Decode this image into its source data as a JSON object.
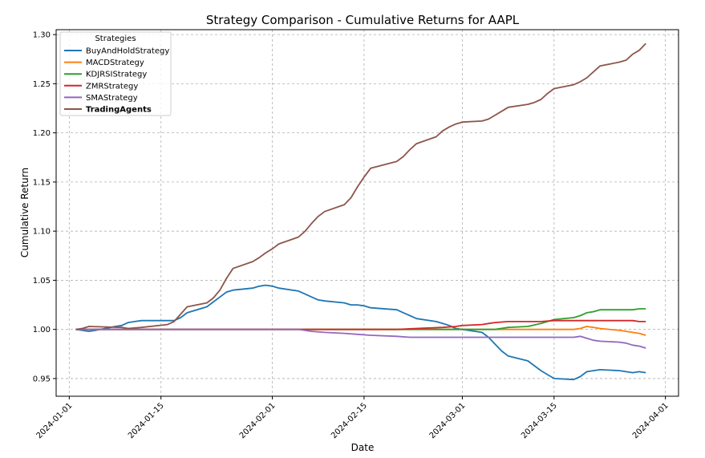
{
  "chart_data": {
    "type": "line",
    "title": "Strategy Comparison - Cumulative Returns for AAPL",
    "xlabel": "Date",
    "ylabel": "Cumulative Return",
    "xlim": [
      "2023-12-30",
      "2024-04-03"
    ],
    "ylim": [
      0.932,
      1.305
    ],
    "x_ticks": [
      "2024-01-01",
      "2024-01-15",
      "2024-02-01",
      "2024-02-15",
      "2024-03-01",
      "2024-03-15",
      "2024-04-01"
    ],
    "y_ticks": [
      "0.95",
      "1.00",
      "1.05",
      "1.10",
      "1.15",
      "1.20",
      "1.25",
      "1.30"
    ],
    "grid": true,
    "legend": {
      "title": "Strategies",
      "placement": "top-left"
    },
    "series": [
      {
        "name": "BuyAndHoldStrategy",
        "color": "#1f77b4",
        "points": [
          [
            "2024-01-02",
            1.0
          ],
          [
            "2024-01-03",
            0.999
          ],
          [
            "2024-01-04",
            0.998
          ],
          [
            "2024-01-05",
            0.999
          ],
          [
            "2024-01-08",
            1.003
          ],
          [
            "2024-01-09",
            1.004
          ],
          [
            "2024-01-10",
            1.007
          ],
          [
            "2024-01-11",
            1.008
          ],
          [
            "2024-01-12",
            1.009
          ],
          [
            "2024-01-16",
            1.009
          ],
          [
            "2024-01-17",
            1.009
          ],
          [
            "2024-01-18",
            1.012
          ],
          [
            "2024-01-19",
            1.017
          ],
          [
            "2024-01-22",
            1.023
          ],
          [
            "2024-01-23",
            1.028
          ],
          [
            "2024-01-24",
            1.033
          ],
          [
            "2024-01-25",
            1.038
          ],
          [
            "2024-01-26",
            1.04
          ],
          [
            "2024-01-29",
            1.042
          ],
          [
            "2024-01-30",
            1.044
          ],
          [
            "2024-01-31",
            1.045
          ],
          [
            "2024-02-01",
            1.044
          ],
          [
            "2024-02-02",
            1.042
          ],
          [
            "2024-02-05",
            1.039
          ],
          [
            "2024-02-06",
            1.036
          ],
          [
            "2024-02-07",
            1.033
          ],
          [
            "2024-02-08",
            1.03
          ],
          [
            "2024-02-09",
            1.029
          ],
          [
            "2024-02-12",
            1.027
          ],
          [
            "2024-02-13",
            1.025
          ],
          [
            "2024-02-14",
            1.025
          ],
          [
            "2024-02-15",
            1.024
          ],
          [
            "2024-02-16",
            1.022
          ],
          [
            "2024-02-20",
            1.02
          ],
          [
            "2024-02-21",
            1.017
          ],
          [
            "2024-02-22",
            1.014
          ],
          [
            "2024-02-23",
            1.011
          ],
          [
            "2024-02-26",
            1.008
          ],
          [
            "2024-02-27",
            1.006
          ],
          [
            "2024-02-28",
            1.004
          ],
          [
            "2024-02-29",
            1.001
          ],
          [
            "2024-03-01",
            1.0
          ],
          [
            "2024-03-04",
            0.997
          ],
          [
            "2024-03-05",
            0.992
          ],
          [
            "2024-03-06",
            0.985
          ],
          [
            "2024-03-07",
            0.978
          ],
          [
            "2024-03-08",
            0.973
          ],
          [
            "2024-03-11",
            0.968
          ],
          [
            "2024-03-12",
            0.963
          ],
          [
            "2024-03-13",
            0.958
          ],
          [
            "2024-03-14",
            0.954
          ],
          [
            "2024-03-15",
            0.95
          ],
          [
            "2024-03-18",
            0.949
          ],
          [
            "2024-03-19",
            0.952
          ],
          [
            "2024-03-20",
            0.957
          ],
          [
            "2024-03-21",
            0.958
          ],
          [
            "2024-03-22",
            0.959
          ],
          [
            "2024-03-25",
            0.958
          ],
          [
            "2024-03-26",
            0.957
          ],
          [
            "2024-03-27",
            0.956
          ],
          [
            "2024-03-28",
            0.957
          ],
          [
            "2024-03-29",
            0.956
          ]
        ]
      },
      {
        "name": "MACDStrategy",
        "color": "#ff7f0e",
        "points": [
          [
            "2024-01-02",
            1.0
          ],
          [
            "2024-01-03",
            1.0
          ],
          [
            "2024-03-18",
            1.0
          ],
          [
            "2024-03-19",
            1.001
          ],
          [
            "2024-03-20",
            1.003
          ],
          [
            "2024-03-21",
            1.002
          ],
          [
            "2024-03-22",
            1.001
          ],
          [
            "2024-03-25",
            0.999
          ],
          [
            "2024-03-26",
            0.998
          ],
          [
            "2024-03-27",
            0.997
          ],
          [
            "2024-03-28",
            0.996
          ],
          [
            "2024-03-29",
            0.994
          ]
        ]
      },
      {
        "name": "KDJRSIStrategy",
        "color": "#2ca02c",
        "points": [
          [
            "2024-01-02",
            1.0
          ],
          [
            "2024-03-06",
            1.0
          ],
          [
            "2024-03-08",
            1.002
          ],
          [
            "2024-03-11",
            1.003
          ],
          [
            "2024-03-13",
            1.006
          ],
          [
            "2024-03-15",
            1.01
          ],
          [
            "2024-03-18",
            1.012
          ],
          [
            "2024-03-19",
            1.014
          ],
          [
            "2024-03-20",
            1.017
          ],
          [
            "2024-03-21",
            1.018
          ],
          [
            "2024-03-22",
            1.02
          ],
          [
            "2024-03-25",
            1.02
          ],
          [
            "2024-03-27",
            1.02
          ],
          [
            "2024-03-28",
            1.021
          ],
          [
            "2024-03-29",
            1.021
          ]
        ]
      },
      {
        "name": "ZMRStrategy",
        "color": "#d62728",
        "points": [
          [
            "2024-01-02",
            1.0
          ],
          [
            "2024-02-20",
            1.0
          ],
          [
            "2024-02-23",
            1.001
          ],
          [
            "2024-02-27",
            1.002
          ],
          [
            "2024-02-29",
            1.003
          ],
          [
            "2024-03-01",
            1.004
          ],
          [
            "2024-03-04",
            1.005
          ],
          [
            "2024-03-05",
            1.006
          ],
          [
            "2024-03-06",
            1.007
          ],
          [
            "2024-03-08",
            1.008
          ],
          [
            "2024-03-13",
            1.008
          ],
          [
            "2024-03-15",
            1.009
          ],
          [
            "2024-03-18",
            1.009
          ],
          [
            "2024-03-22",
            1.009
          ],
          [
            "2024-03-27",
            1.009
          ],
          [
            "2024-03-28",
            1.008
          ],
          [
            "2024-03-29",
            1.008
          ]
        ]
      },
      {
        "name": "SMAStrategy",
        "color": "#9467bd",
        "points": [
          [
            "2024-01-02",
            1.0
          ],
          [
            "2024-02-05",
            1.0
          ],
          [
            "2024-02-06",
            0.999
          ],
          [
            "2024-02-07",
            0.998
          ],
          [
            "2024-02-09",
            0.997
          ],
          [
            "2024-02-12",
            0.996
          ],
          [
            "2024-02-14",
            0.995
          ],
          [
            "2024-02-16",
            0.994
          ],
          [
            "2024-02-20",
            0.993
          ],
          [
            "2024-02-22",
            0.992
          ],
          [
            "2024-03-18",
            0.992
          ],
          [
            "2024-03-19",
            0.993
          ],
          [
            "2024-03-20",
            0.991
          ],
          [
            "2024-03-21",
            0.989
          ],
          [
            "2024-03-22",
            0.988
          ],
          [
            "2024-03-25",
            0.987
          ],
          [
            "2024-03-26",
            0.986
          ],
          [
            "2024-03-27",
            0.984
          ],
          [
            "2024-03-28",
            0.983
          ],
          [
            "2024-03-29",
            0.981
          ]
        ]
      },
      {
        "name": "TradingAgents",
        "color": "#8c564b",
        "points": [
          [
            "2024-01-02",
            1.0
          ],
          [
            "2024-01-03",
            1.001
          ],
          [
            "2024-01-04",
            1.003
          ],
          [
            "2024-01-09",
            1.002
          ],
          [
            "2024-01-10",
            1.001
          ],
          [
            "2024-01-12",
            1.002
          ],
          [
            "2024-01-16",
            1.005
          ],
          [
            "2024-01-17",
            1.008
          ],
          [
            "2024-01-19",
            1.023
          ],
          [
            "2024-01-22",
            1.027
          ],
          [
            "2024-01-23",
            1.032
          ],
          [
            "2024-01-24",
            1.04
          ],
          [
            "2024-01-25",
            1.052
          ],
          [
            "2024-01-26",
            1.062
          ],
          [
            "2024-01-29",
            1.069
          ],
          [
            "2024-01-30",
            1.073
          ],
          [
            "2024-01-31",
            1.078
          ],
          [
            "2024-02-01",
            1.082
          ],
          [
            "2024-02-02",
            1.087
          ],
          [
            "2024-02-05",
            1.094
          ],
          [
            "2024-02-06",
            1.1
          ],
          [
            "2024-02-07",
            1.108
          ],
          [
            "2024-02-08",
            1.115
          ],
          [
            "2024-02-09",
            1.12
          ],
          [
            "2024-02-12",
            1.127
          ],
          [
            "2024-02-13",
            1.134
          ],
          [
            "2024-02-14",
            1.145
          ],
          [
            "2024-02-15",
            1.155
          ],
          [
            "2024-02-16",
            1.164
          ],
          [
            "2024-02-20",
            1.171
          ],
          [
            "2024-02-21",
            1.176
          ],
          [
            "2024-02-22",
            1.183
          ],
          [
            "2024-02-23",
            1.189
          ],
          [
            "2024-02-26",
            1.196
          ],
          [
            "2024-02-27",
            1.202
          ],
          [
            "2024-02-28",
            1.206
          ],
          [
            "2024-02-29",
            1.209
          ],
          [
            "2024-03-01",
            1.211
          ],
          [
            "2024-03-04",
            1.212
          ],
          [
            "2024-03-05",
            1.214
          ],
          [
            "2024-03-06",
            1.218
          ],
          [
            "2024-03-07",
            1.222
          ],
          [
            "2024-03-08",
            1.226
          ],
          [
            "2024-03-11",
            1.229
          ],
          [
            "2024-03-12",
            1.231
          ],
          [
            "2024-03-13",
            1.234
          ],
          [
            "2024-03-14",
            1.24
          ],
          [
            "2024-03-15",
            1.245
          ],
          [
            "2024-03-18",
            1.249
          ],
          [
            "2024-03-19",
            1.252
          ],
          [
            "2024-03-20",
            1.256
          ],
          [
            "2024-03-21",
            1.262
          ],
          [
            "2024-03-22",
            1.268
          ],
          [
            "2024-03-25",
            1.272
          ],
          [
            "2024-03-26",
            1.274
          ],
          [
            "2024-03-27",
            1.28
          ],
          [
            "2024-03-28",
            1.284
          ],
          [
            "2024-03-29",
            1.291
          ]
        ]
      }
    ]
  }
}
